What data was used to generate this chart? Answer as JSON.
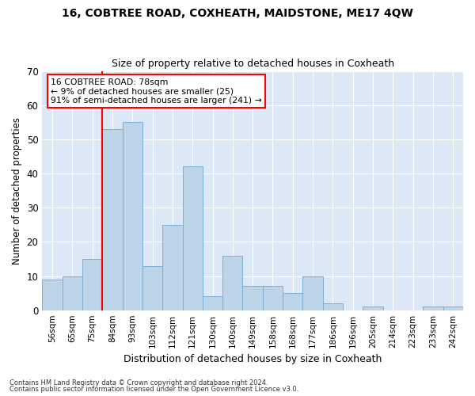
{
  "title1": "16, COBTREE ROAD, COXHEATH, MAIDSTONE, ME17 4QW",
  "title2": "Size of property relative to detached houses in Coxheath",
  "xlabel": "Distribution of detached houses by size in Coxheath",
  "ylabel": "Number of detached properties",
  "categories": [
    "56sqm",
    "65sqm",
    "75sqm",
    "84sqm",
    "93sqm",
    "103sqm",
    "112sqm",
    "121sqm",
    "130sqm",
    "140sqm",
    "149sqm",
    "158sqm",
    "168sqm",
    "177sqm",
    "186sqm",
    "196sqm",
    "205sqm",
    "214sqm",
    "223sqm",
    "233sqm",
    "242sqm"
  ],
  "values": [
    9,
    10,
    15,
    53,
    55,
    13,
    25,
    42,
    4,
    16,
    7,
    7,
    5,
    10,
    2,
    0,
    1,
    0,
    0,
    1,
    1
  ],
  "bar_color": "#bdd4e8",
  "bar_edge_color": "#7aafd4",
  "red_line_x": 2.5,
  "ylim": [
    0,
    70
  ],
  "yticks": [
    0,
    10,
    20,
    30,
    40,
    50,
    60,
    70
  ],
  "annotation_text": "16 COBTREE ROAD: 78sqm\n← 9% of detached houses are smaller (25)\n91% of semi-detached houses are larger (241) →",
  "background_color": "#dce8f5",
  "footer1": "Contains HM Land Registry data © Crown copyright and database right 2024.",
  "footer2": "Contains public sector information licensed under the Open Government Licence v3.0."
}
